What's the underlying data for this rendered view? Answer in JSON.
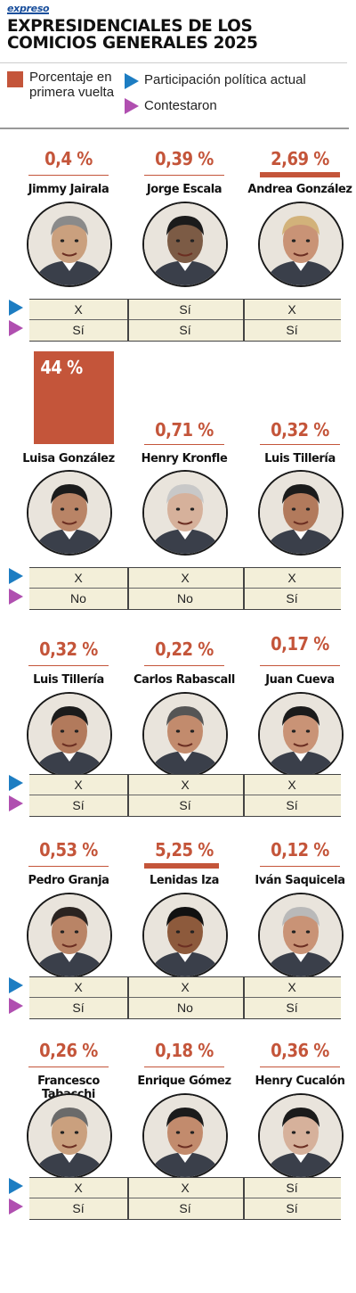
{
  "brand": "expreso",
  "title": "EXPRESIDENCIALES DE LOS COMICIOS GENERALES 2025",
  "legend": {
    "percent_label": "Porcentaje en primera vuelta",
    "participation_label": "Participación política actual",
    "answered_label": "Contestaron",
    "colors": {
      "percent": "#c4553a",
      "participation": "#1d7dc2",
      "answered": "#b04fb0"
    }
  },
  "groups": [
    {
      "candidates": [
        {
          "name": "Jimmy Jairala",
          "percent": "0,4 %",
          "participation": "X",
          "answered": "Sí"
        },
        {
          "name": "Jorge Escala",
          "percent": "0,39 %",
          "participation": "Sí",
          "answered": "Sí"
        },
        {
          "name": "Andrea González",
          "percent": "2,69 %",
          "participation": "X",
          "answered": "Sí"
        }
      ]
    },
    {
      "candidates": [
        {
          "name": "Luisa González",
          "percent": "44 %",
          "participation": "X",
          "answered": "No"
        },
        {
          "name": "Henry Kronfle",
          "percent": "0,71 %",
          "participation": "X",
          "answered": "No"
        },
        {
          "name": "Luis Tillería",
          "percent": "0,32 %",
          "participation": "X",
          "answered": "Sí"
        }
      ]
    },
    {
      "candidates": [
        {
          "name": "Luis Tillería",
          "percent": "0,32 %",
          "participation": "X",
          "answered": "Sí"
        },
        {
          "name": "Carlos Rabascall",
          "percent": "0,22 %",
          "participation": "X",
          "answered": "Sí"
        },
        {
          "name": "Juan Cueva",
          "percent": "0,17 %",
          "participation": "X",
          "answered": "Sí"
        }
      ]
    },
    {
      "candidates": [
        {
          "name": "Pedro Granja",
          "percent": "0,53 %",
          "participation": "X",
          "answered": "Sí"
        },
        {
          "name": "Lenidas Iza",
          "percent": "5,25 %",
          "participation": "X",
          "answered": "No"
        },
        {
          "name": "Iván Saquicela",
          "percent": "0,12 %",
          "participation": "X",
          "answered": "Sí"
        }
      ]
    },
    {
      "candidates": [
        {
          "name": "Francesco Tabacchi",
          "percent": "0,26 %",
          "participation": "X",
          "answered": "Sí"
        },
        {
          "name": "Enrique Gómez",
          "percent": "0,18 %",
          "participation": "X",
          "answered": "Sí"
        },
        {
          "name": "Henry Cucalón",
          "percent": "0,36 %",
          "participation": "Sí",
          "answered": "Sí"
        }
      ]
    }
  ]
}
